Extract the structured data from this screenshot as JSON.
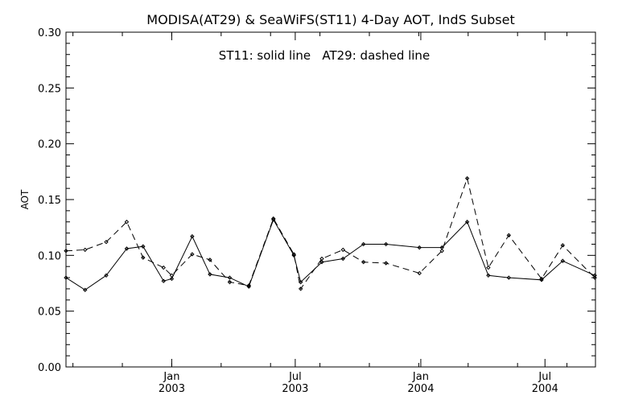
{
  "chart_data": {
    "type": "line",
    "title": "MODISA(AT29) & SeaWiFS(ST11) 4-Day AOT, IndS Subset",
    "annotation": "ST11: solid line   AT29: dashed line",
    "ylabel": "AOT",
    "xlabel": "",
    "ylim": [
      0,
      0.3
    ],
    "yticks": [
      "0.00",
      "0.05",
      "0.10",
      "0.15",
      "0.20",
      "0.25",
      "0.30"
    ],
    "xlim": [
      "2002-07-30",
      "2004-09-13"
    ],
    "xticks": [
      {
        "date": "2003-01-01",
        "month": "Jan",
        "year": "2003"
      },
      {
        "date": "2003-07-01",
        "month": "Jul",
        "year": "2003"
      },
      {
        "date": "2004-01-01",
        "month": "Jan",
        "year": "2004"
      },
      {
        "date": "2004-07-01",
        "month": "Jul",
        "year": "2004"
      }
    ],
    "grid": false,
    "series": [
      {
        "name": "ST11",
        "style": "solid",
        "color": "#000000",
        "points": [
          {
            "x": "2002-07-30",
            "y": 0.08
          },
          {
            "x": "2002-08-27",
            "y": 0.069
          },
          {
            "x": "2002-09-27",
            "y": 0.082
          },
          {
            "x": "2002-10-27",
            "y": 0.106
          },
          {
            "x": "2002-11-20",
            "y": 0.108
          },
          {
            "x": "2002-12-20",
            "y": 0.077
          },
          {
            "x": "2003-01-01",
            "y": 0.079
          },
          {
            "x": "2003-01-31",
            "y": 0.117
          },
          {
            "x": "2003-02-26",
            "y": 0.083
          },
          {
            "x": "2003-03-27",
            "y": 0.08
          },
          {
            "x": "2003-04-24",
            "y": 0.072
          },
          {
            "x": "2003-05-30",
            "y": 0.132
          },
          {
            "x": "2003-06-29",
            "y": 0.1
          },
          {
            "x": "2003-07-09",
            "y": 0.076
          },
          {
            "x": "2003-08-09",
            "y": 0.094
          },
          {
            "x": "2003-09-09",
            "y": 0.097
          },
          {
            "x": "2003-10-09",
            "y": 0.11
          },
          {
            "x": "2003-11-11",
            "y": 0.11
          },
          {
            "x": "2003-12-30",
            "y": 0.107
          },
          {
            "x": "2004-02-01",
            "y": 0.107
          },
          {
            "x": "2004-03-09",
            "y": 0.13
          },
          {
            "x": "2004-04-09",
            "y": 0.082
          },
          {
            "x": "2004-05-09",
            "y": 0.08
          },
          {
            "x": "2004-06-26",
            "y": 0.078
          },
          {
            "x": "2004-07-27",
            "y": 0.095
          },
          {
            "x": "2004-09-12",
            "y": 0.082
          }
        ]
      },
      {
        "name": "AT29",
        "style": "dashed",
        "color": "#000000",
        "points": [
          {
            "x": "2002-07-30",
            "y": 0.104
          },
          {
            "x": "2002-08-27",
            "y": 0.105
          },
          {
            "x": "2002-09-27",
            "y": 0.112
          },
          {
            "x": "2002-10-27",
            "y": 0.13
          },
          {
            "x": "2002-11-20",
            "y": 0.098
          },
          {
            "x": "2002-12-20",
            "y": 0.089
          },
          {
            "x": "2003-01-01",
            "y": 0.082
          },
          {
            "x": "2003-01-31",
            "y": 0.101
          },
          {
            "x": "2003-02-26",
            "y": 0.096
          },
          {
            "x": "2003-03-27",
            "y": 0.076
          },
          {
            "x": "2003-04-24",
            "y": 0.073
          },
          {
            "x": "2003-05-30",
            "y": 0.133
          },
          {
            "x": "2003-06-29",
            "y": 0.101
          },
          {
            "x": "2003-07-09",
            "y": 0.07
          },
          {
            "x": "2003-08-09",
            "y": 0.097
          },
          {
            "x": "2003-09-09",
            "y": 0.105
          },
          {
            "x": "2003-10-09",
            "y": 0.094
          },
          {
            "x": "2003-11-11",
            "y": 0.093
          },
          {
            "x": "2003-12-30",
            "y": 0.084
          },
          {
            "x": "2004-02-01",
            "y": 0.104
          },
          {
            "x": "2004-03-09",
            "y": 0.169
          },
          {
            "x": "2004-04-09",
            "y": 0.089
          },
          {
            "x": "2004-05-09",
            "y": 0.118
          },
          {
            "x": "2004-06-26",
            "y": 0.079
          },
          {
            "x": "2004-07-27",
            "y": 0.109
          },
          {
            "x": "2004-09-12",
            "y": 0.08
          }
        ]
      }
    ]
  }
}
